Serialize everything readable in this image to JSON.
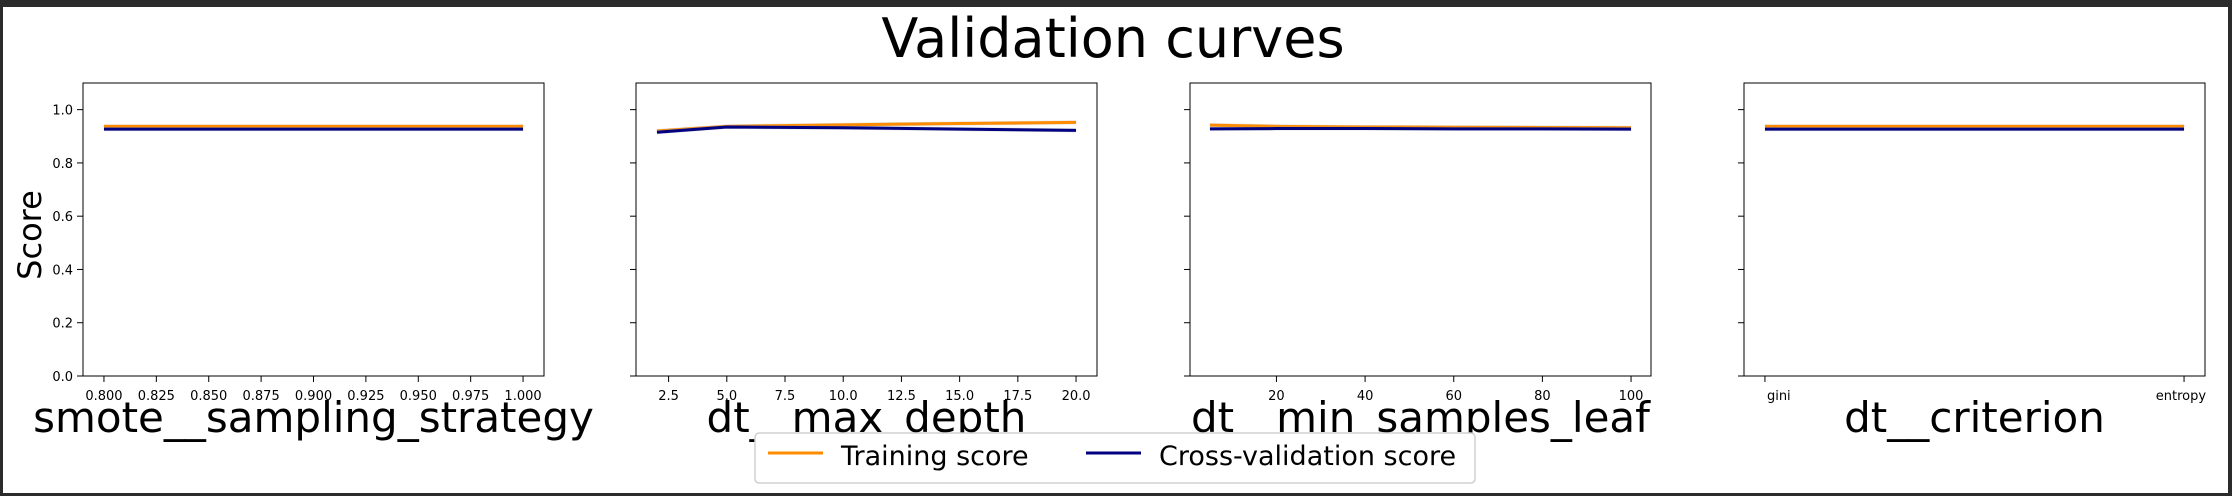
{
  "figure": {
    "title": "Validation curves",
    "ylabel": "Score"
  },
  "colors": {
    "training": "#ff8c00",
    "cross_validation": "#000080",
    "band": "#aaaaaa",
    "axis": "#000000",
    "background": "#ffffff"
  },
  "legend": {
    "placement": "bottom-center",
    "entries": [
      "Training score",
      "Cross-validation score"
    ]
  },
  "chart_data": [
    {
      "type": "line",
      "xlabel": "smote__sampling_strategy",
      "ylabel": "Score",
      "xlim": [
        0.79,
        1.01
      ],
      "ylim": [
        0,
        1.1
      ],
      "y_ticks": [
        "0.0",
        "0.2",
        "0.4",
        "0.6",
        "0.8",
        "1.0"
      ],
      "x_ticks": [
        "0.800",
        "0.825",
        "0.850",
        "0.875",
        "0.900",
        "0.925",
        "0.950",
        "0.975",
        "1.000"
      ],
      "x": [
        0.8,
        0.825,
        0.85,
        0.875,
        0.9,
        0.925,
        0.95,
        0.975,
        1.0
      ],
      "series": [
        {
          "name": "Training score",
          "values": [
            0.937,
            0.937,
            0.937,
            0.937,
            0.937,
            0.937,
            0.937,
            0.937,
            0.937
          ]
        },
        {
          "name": "Cross-validation score",
          "values": [
            0.927,
            0.927,
            0.927,
            0.927,
            0.927,
            0.927,
            0.927,
            0.927,
            0.927
          ]
        }
      ]
    },
    {
      "type": "line",
      "xlabel": "dt__max_depth",
      "ylim": [
        0,
        1.1
      ],
      "xlim": [
        1.1,
        20.9
      ],
      "y_ticks": [
        "",
        "",
        "",
        "",
        "",
        ""
      ],
      "x_ticks": [
        "2.5",
        "5.0",
        "7.5",
        "10.0",
        "12.5",
        "15.0",
        "17.5",
        "20.0"
      ],
      "x": [
        2,
        5,
        10,
        15,
        20
      ],
      "series": [
        {
          "name": "Training score",
          "values": [
            0.92,
            0.937,
            0.943,
            0.948,
            0.952
          ]
        },
        {
          "name": "Cross-validation score",
          "values": [
            0.915,
            0.935,
            0.932,
            0.927,
            0.922
          ]
        }
      ]
    },
    {
      "type": "line",
      "xlabel": "dt__min_samples_leaf",
      "ylim": [
        0,
        1.1
      ],
      "xlim": [
        0.5,
        104.5
      ],
      "y_ticks": [
        "",
        "",
        "",
        "",
        "",
        ""
      ],
      "x_ticks": [
        "20",
        "40",
        "60",
        "80",
        "100"
      ],
      "x": [
        5,
        20,
        40,
        60,
        80,
        100
      ],
      "series": [
        {
          "name": "Training score",
          "values": [
            0.942,
            0.937,
            0.935,
            0.934,
            0.933,
            0.932
          ]
        },
        {
          "name": "Cross-validation score",
          "values": [
            0.928,
            0.929,
            0.929,
            0.928,
            0.928,
            0.927
          ]
        }
      ]
    },
    {
      "type": "line",
      "xlabel": "dt__criterion",
      "ylim": [
        0,
        1.1
      ],
      "xlim": [
        -0.05,
        1.05
      ],
      "y_ticks": [
        "",
        "",
        "",
        "",
        "",
        ""
      ],
      "x_ticks": [
        "gini",
        "entropy"
      ],
      "x": [
        0,
        1
      ],
      "series": [
        {
          "name": "Training score",
          "values": [
            0.937,
            0.937
          ]
        },
        {
          "name": "Cross-validation score",
          "values": [
            0.927,
            0.927
          ]
        }
      ]
    }
  ]
}
